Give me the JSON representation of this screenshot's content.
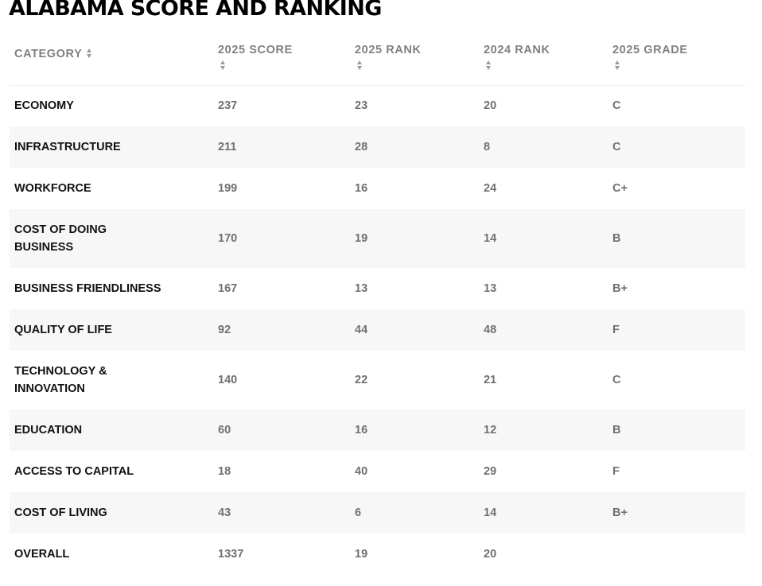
{
  "title": "ALABAMA SCORE AND RANKING",
  "table": {
    "headers": {
      "category": "CATEGORY",
      "score_2025": "2025 SCORE",
      "rank_2025": "2025 RANK",
      "rank_2024": "2024 RANK",
      "grade_2025": "2025 GRADE"
    },
    "rows": [
      {
        "category": [
          "ECONOMY"
        ],
        "score": "237",
        "rank_2025": "23",
        "rank_2024": "20",
        "grade": "C"
      },
      {
        "category": [
          "INFRASTRUCTURE"
        ],
        "score": "211",
        "rank_2025": "28",
        "rank_2024": "8",
        "grade": "C"
      },
      {
        "category": [
          "WORKFORCE"
        ],
        "score": "199",
        "rank_2025": "16",
        "rank_2024": "24",
        "grade": "C+"
      },
      {
        "category": [
          "COST OF DOING",
          "BUSINESS"
        ],
        "score": "170",
        "rank_2025": "19",
        "rank_2024": "14",
        "grade": "B"
      },
      {
        "category": [
          "BUSINESS FRIENDLINESS"
        ],
        "score": "167",
        "rank_2025": "13",
        "rank_2024": "13",
        "grade": "B+"
      },
      {
        "category": [
          "QUALITY OF LIFE"
        ],
        "score": "92",
        "rank_2025": "44",
        "rank_2024": "48",
        "grade": "F"
      },
      {
        "category": [
          "TECHNOLOGY &",
          "INNOVATION"
        ],
        "score": "140",
        "rank_2025": "22",
        "rank_2024": "21",
        "grade": "C"
      },
      {
        "category": [
          "EDUCATION"
        ],
        "score": "60",
        "rank_2025": "16",
        "rank_2024": "12",
        "grade": "B"
      },
      {
        "category": [
          "ACCESS TO CAPITAL"
        ],
        "score": "18",
        "rank_2025": "40",
        "rank_2024": "29",
        "grade": "F"
      },
      {
        "category": [
          "COST OF LIVING"
        ],
        "score": "43",
        "rank_2025": "6",
        "rank_2024": "14",
        "grade": "B+"
      },
      {
        "category": [
          "OVERALL"
        ],
        "score": "1337",
        "rank_2025": "19",
        "rank_2024": "20",
        "grade": ""
      }
    ]
  }
}
